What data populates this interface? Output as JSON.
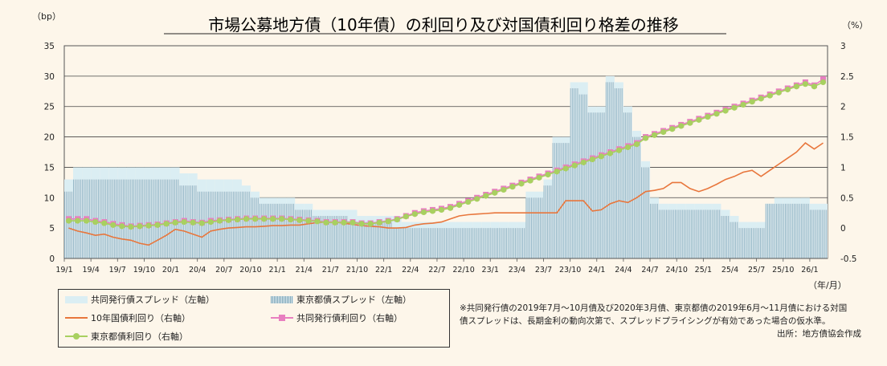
{
  "chart_data": {
    "type": "bar+line",
    "title": "市場公募地方債（10年債）の利回り及び対国債利回り格差の推移",
    "left_axis": {
      "unit": "（bp）",
      "min": 0,
      "max": 35,
      "ticks": [
        "0",
        "5",
        "10",
        "15",
        "20",
        "25",
        "30",
        "35"
      ]
    },
    "right_axis": {
      "unit": "（%）",
      "min": -0.5,
      "max": 3,
      "ticks": [
        "-0.5",
        "0",
        "0.5",
        "1",
        "1.5",
        "2",
        "2.5",
        "3"
      ]
    },
    "x_unit": "（年/月）",
    "x_ticks": [
      "19/1",
      "19/4",
      "19/7",
      "19/10",
      "20/1",
      "20/4",
      "20/7",
      "20/10",
      "21/1",
      "21/4",
      "21/7",
      "21/10",
      "22/1",
      "22/4",
      "22/7",
      "22/10",
      "23/1",
      "23/4",
      "23/7",
      "23/10",
      "24/1",
      "24/4",
      "24/7",
      "24/10",
      "25/1",
      "25/4",
      "25/7",
      "25/10",
      "26/1"
    ],
    "months": 86,
    "series": [
      {
        "name": "共同発行債スプレッド（左軸）",
        "axis": "left",
        "type": "bar",
        "color": "#dbeef3",
        "values": [
          13,
          15,
          15,
          15,
          15,
          15,
          15,
          15,
          15,
          15,
          15,
          15,
          15,
          14,
          14,
          13,
          13,
          13,
          13,
          13,
          12,
          11,
          10,
          10,
          10,
          10,
          9,
          9,
          8,
          8,
          8,
          8,
          8,
          7,
          7,
          7,
          7,
          7,
          6,
          6,
          6,
          6,
          6,
          6,
          6,
          6,
          6,
          6,
          6,
          6,
          6,
          6,
          11,
          11,
          13,
          20,
          20,
          29,
          29,
          25,
          25,
          30,
          29,
          25,
          21,
          16,
          10,
          9,
          9,
          9,
          9,
          9,
          9,
          9,
          8,
          7,
          6,
          6,
          6,
          9,
          10,
          10,
          10,
          10,
          9,
          9
        ]
      },
      {
        "name": "東京都債スプレッド（左軸）",
        "axis": "left",
        "type": "bar",
        "color": "#8fb3c3",
        "values": [
          11,
          13,
          13,
          13,
          13,
          13,
          13,
          13,
          13,
          13,
          13,
          13,
          13,
          12,
          12,
          11,
          11,
          11,
          11,
          11,
          11,
          10,
          9,
          9,
          9,
          9,
          8,
          8,
          7,
          7,
          7,
          7,
          6,
          6,
          6,
          6,
          6,
          5,
          5,
          5,
          5,
          5,
          5,
          5,
          5,
          5,
          5,
          5,
          5,
          5,
          5,
          5,
          10,
          10,
          12,
          19,
          19,
          28,
          27,
          24,
          24,
          29,
          28,
          24,
          20,
          15,
          9,
          8,
          8,
          8,
          8,
          8,
          8,
          8,
          7,
          6,
          5,
          5,
          5,
          9,
          9,
          9,
          9,
          9,
          8,
          8
        ]
      },
      {
        "name": "10年国債利回り（右軸）",
        "axis": "right",
        "type": "line",
        "color": "#e8763c",
        "values": [
          0.0,
          -0.05,
          -0.08,
          -0.12,
          -0.1,
          -0.15,
          -0.18,
          -0.2,
          -0.25,
          -0.28,
          -0.2,
          -0.12,
          -0.02,
          -0.05,
          -0.1,
          -0.15,
          -0.05,
          -0.02,
          0.0,
          0.01,
          0.02,
          0.02,
          0.03,
          0.04,
          0.04,
          0.05,
          0.05,
          0.07,
          0.09,
          0.1,
          0.1,
          0.08,
          0.06,
          0.04,
          0.03,
          0.02,
          0.0,
          0.0,
          0.01,
          0.05,
          0.07,
          0.08,
          0.1,
          0.15,
          0.2,
          0.22,
          0.23,
          0.24,
          0.25,
          0.25,
          0.25,
          0.25,
          0.25,
          0.25,
          0.25,
          0.25,
          0.45,
          0.45,
          0.45,
          0.28,
          0.3,
          0.4,
          0.45,
          0.42,
          0.5,
          0.6,
          0.62,
          0.65,
          0.75,
          0.75,
          0.65,
          0.6,
          0.65,
          0.72,
          0.8,
          0.85,
          0.92,
          0.95,
          0.85,
          0.95,
          1.05,
          1.15,
          1.25,
          1.4,
          1.3,
          1.4
        ]
      },
      {
        "name": "共同発行債利回り（右軸）",
        "axis": "right",
        "type": "line",
        "color": "#e87fc0",
        "values": [
          0.15,
          0.15,
          0.15,
          0.12,
          0.1,
          0.07,
          0.05,
          0.03,
          0.04,
          0.05,
          0.06,
          0.08,
          0.1,
          0.12,
          0.1,
          0.09,
          0.12,
          0.13,
          0.14,
          0.15,
          0.16,
          0.16,
          0.16,
          0.16,
          0.16,
          0.15,
          0.14,
          0.13,
          0.12,
          0.1,
          0.1,
          0.1,
          0.1,
          0.08,
          0.08,
          0.1,
          0.12,
          0.15,
          0.2,
          0.25,
          0.28,
          0.3,
          0.32,
          0.35,
          0.4,
          0.45,
          0.5,
          0.55,
          0.6,
          0.65,
          0.7,
          0.75,
          0.8,
          0.85,
          0.9,
          0.95,
          1.0,
          1.05,
          1.1,
          1.15,
          1.2,
          1.25,
          1.3,
          1.35,
          1.4,
          1.5,
          1.55,
          1.6,
          1.65,
          1.7,
          1.75,
          1.8,
          1.85,
          1.9,
          1.95,
          2.0,
          2.05,
          2.1,
          2.15,
          2.2,
          2.25,
          2.3,
          2.35,
          2.4,
          2.35,
          2.45
        ]
      },
      {
        "name": "東京都債利回り（右軸）",
        "axis": "right",
        "type": "line",
        "color": "#a8d060",
        "values": [
          0.12,
          0.12,
          0.12,
          0.1,
          0.08,
          0.05,
          0.03,
          0.02,
          0.03,
          0.04,
          0.05,
          0.07,
          0.09,
          0.1,
          0.09,
          0.08,
          0.1,
          0.12,
          0.13,
          0.14,
          0.15,
          0.15,
          0.15,
          0.15,
          0.15,
          0.14,
          0.13,
          0.12,
          0.11,
          0.09,
          0.09,
          0.09,
          0.09,
          0.07,
          0.07,
          0.09,
          0.11,
          0.14,
          0.19,
          0.23,
          0.26,
          0.28,
          0.3,
          0.33,
          0.38,
          0.43,
          0.48,
          0.53,
          0.58,
          0.63,
          0.68,
          0.73,
          0.78,
          0.83,
          0.88,
          0.93,
          0.98,
          1.03,
          1.08,
          1.13,
          1.18,
          1.23,
          1.28,
          1.33,
          1.38,
          1.48,
          1.53,
          1.58,
          1.63,
          1.68,
          1.73,
          1.78,
          1.83,
          1.88,
          1.93,
          1.98,
          2.03,
          2.08,
          2.13,
          2.18,
          2.23,
          2.28,
          2.33,
          2.37,
          2.33,
          2.4
        ]
      }
    ]
  },
  "legend": {
    "kyodo_spread": "共同発行債スプレッド（左軸）",
    "tokyo_spread": "東京都債スプレッド（左軸）",
    "jgb_yield": "10年国債利回り（右軸）",
    "kyodo_yield": "共同発行債利回り（右軸）",
    "tokyo_yield": "東京都債利回り（右軸）"
  },
  "note_line1": "※共同発行債の2019年7月～10月債及び2020年3月債、東京都債の2019年6月～11月債における対国",
  "note_line2": "債スプレッドは、長期金利の動向次第で、スプレッドプライシングが有効であった場合の仮水準。",
  "source": "出所：地方債協会作成"
}
